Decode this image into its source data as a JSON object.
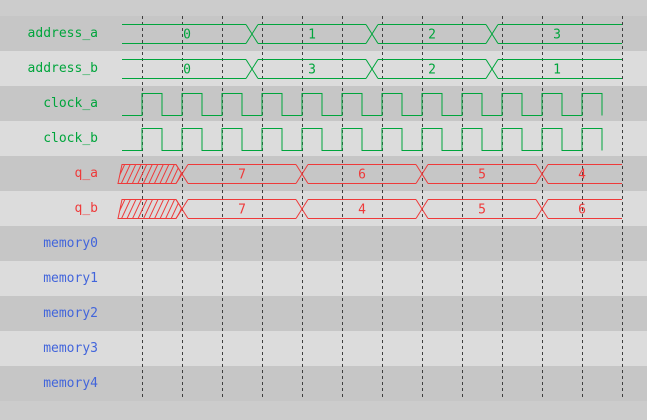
{
  "window": {
    "bg": "#cccccc",
    "row_dark": "#c6c6c6",
    "row_light": "#dcdcdc",
    "grid_color": "#3f3f3f"
  },
  "colors": {
    "green": "#00A53C",
    "red": "#EE3A3A",
    "blue": "#4265DB"
  },
  "timeline": {
    "start": 0,
    "end": 500,
    "grid_start": 20,
    "grid_step": 40,
    "grid_count": 13
  },
  "signals": [
    {
      "name": "address_a",
      "color": "green",
      "kind": "bus",
      "segments": [
        {
          "value": "0",
          "t0": 0,
          "t1": 130
        },
        {
          "value": "1",
          "t0": 130,
          "t1": 250
        },
        {
          "value": "2",
          "t0": 250,
          "t1": 370
        },
        {
          "value": "3",
          "t0": 370,
          "t1": 500
        }
      ]
    },
    {
      "name": "address_b",
      "color": "green",
      "kind": "bus",
      "segments": [
        {
          "value": "0",
          "t0": 0,
          "t1": 130
        },
        {
          "value": "3",
          "t0": 130,
          "t1": 250
        },
        {
          "value": "2",
          "t0": 250,
          "t1": 370
        },
        {
          "value": "1",
          "t0": 370,
          "t1": 500
        }
      ]
    },
    {
      "name": "clock_a",
      "color": "green",
      "kind": "clock",
      "first_rise": 20,
      "period": 40,
      "duty": 0.5
    },
    {
      "name": "clock_b",
      "color": "green",
      "kind": "clock",
      "first_rise": 20,
      "period": 40,
      "duty": 0.5
    },
    {
      "name": "q_a",
      "color": "red",
      "kind": "bus",
      "segments": [
        {
          "unknown": true,
          "t0": 0,
          "t1": 60
        },
        {
          "value": "7",
          "t0": 60,
          "t1": 180
        },
        {
          "value": "6",
          "t0": 180,
          "t1": 300
        },
        {
          "value": "5",
          "t0": 300,
          "t1": 420
        },
        {
          "value": "4",
          "t0": 420,
          "t1": 500
        }
      ]
    },
    {
      "name": "q_b",
      "color": "red",
      "kind": "bus",
      "segments": [
        {
          "unknown": true,
          "t0": 0,
          "t1": 60
        },
        {
          "value": "7",
          "t0": 60,
          "t1": 180
        },
        {
          "value": "4",
          "t0": 180,
          "t1": 300
        },
        {
          "value": "5",
          "t0": 300,
          "t1": 420
        },
        {
          "value": "6",
          "t0": 420,
          "t1": 500
        }
      ]
    },
    {
      "name": "memory0",
      "color": "blue",
      "kind": "blank"
    },
    {
      "name": "memory1",
      "color": "blue",
      "kind": "blank"
    },
    {
      "name": "memory2",
      "color": "blue",
      "kind": "blank"
    },
    {
      "name": "memory3",
      "color": "blue",
      "kind": "blank"
    },
    {
      "name": "memory4",
      "color": "blue",
      "kind": "blank"
    }
  ]
}
